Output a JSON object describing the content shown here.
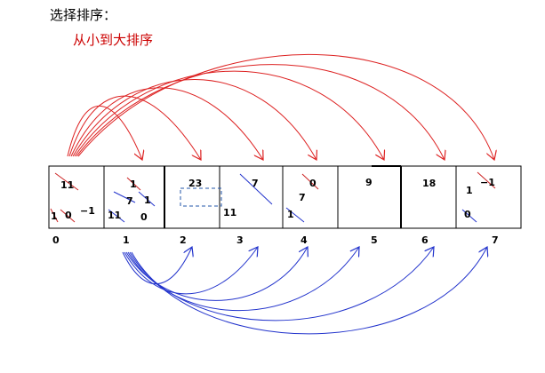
{
  "title": "选择排序：",
  "subtitle": "从小到大排序",
  "indices": [
    "0",
    "1",
    "2",
    "3",
    "4",
    "5",
    "6",
    "7"
  ],
  "cells": [
    {
      "main": "11",
      "extras": [
        "1",
        "0",
        "−1"
      ]
    },
    {
      "main": "1",
      "extras": [
        "7",
        "1",
        "11",
        "0"
      ]
    },
    {
      "main": "23",
      "extras": []
    },
    {
      "main": "7",
      "extras": [
        "11"
      ]
    },
    {
      "main": "0",
      "extras": [
        "7",
        "1"
      ]
    },
    {
      "main": "9",
      "extras": []
    },
    {
      "main": "18",
      "extras": []
    },
    {
      "main": "−1",
      "extras": [
        "1",
        "0"
      ]
    }
  ],
  "colors": {
    "red_arrows": "#dd2222",
    "blue_arrows": "#2233cc",
    "strike_red": "#cc2222",
    "strike_blue": "#2233cc",
    "dashed_box": "#2255aa",
    "cell_border": "#000000"
  }
}
